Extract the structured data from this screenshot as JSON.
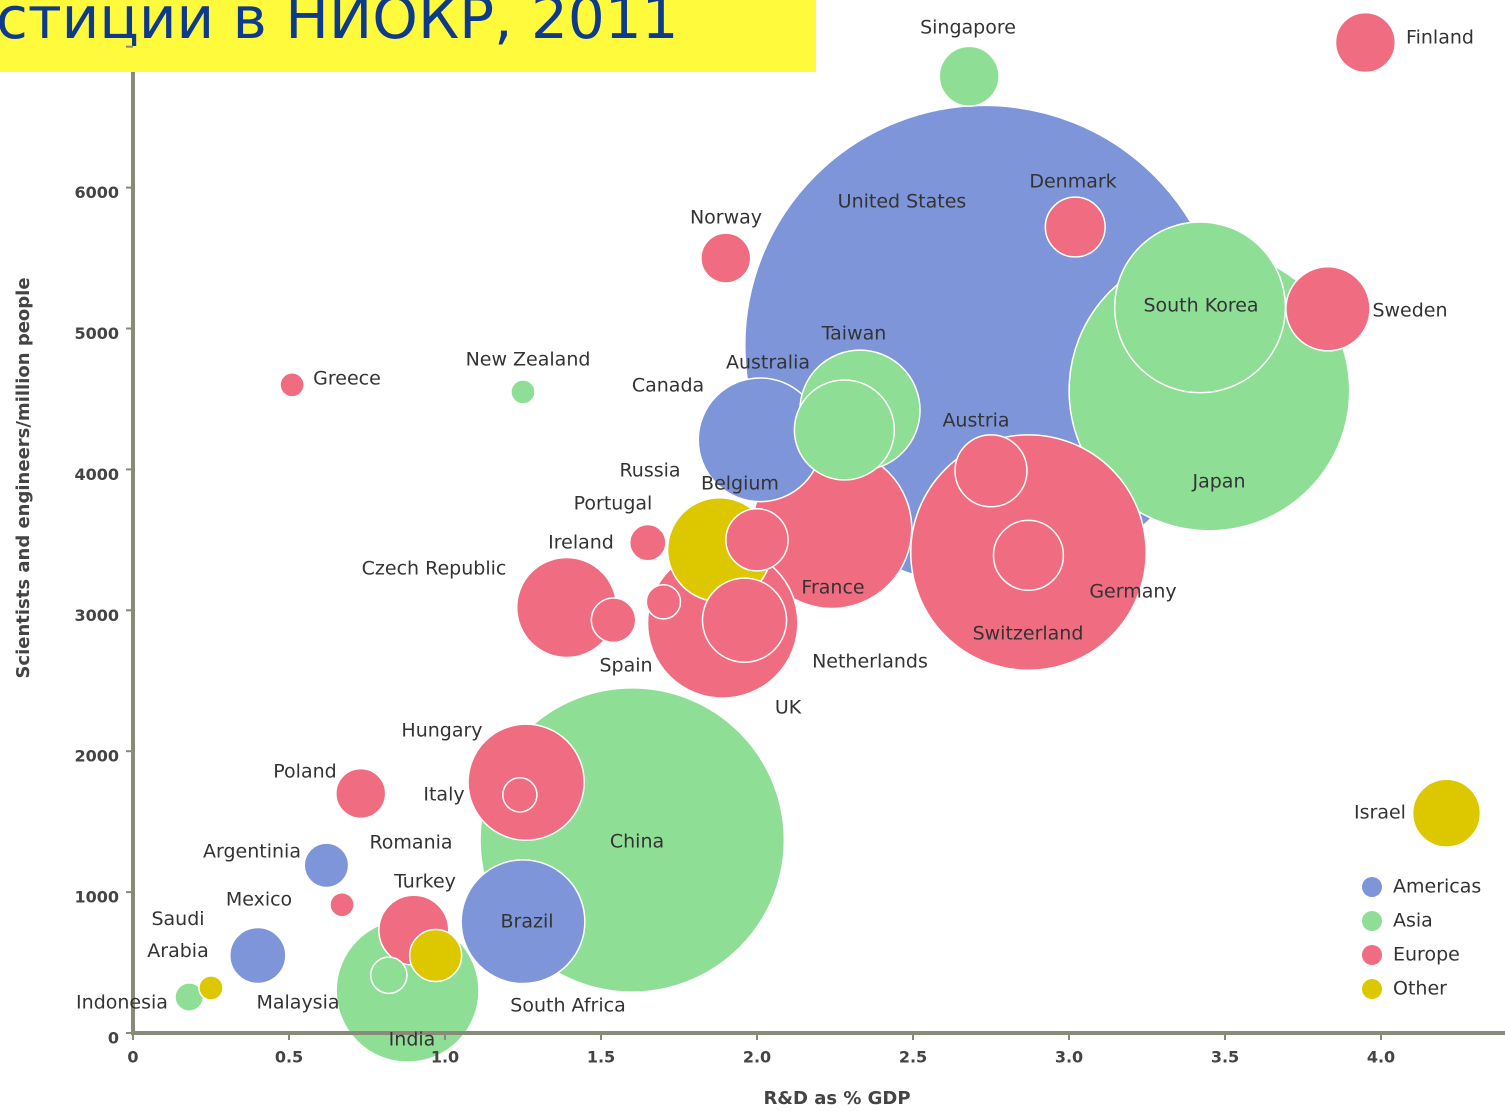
{
  "chart_data": {
    "type": "bubble",
    "title": "стиции в НИОКР, 2011",
    "x_label": "R&D as % GDP",
    "y_label": "Scientists and engineers/million people",
    "xlim": [
      0,
      4.6
    ],
    "ylim": [
      0,
      7400
    ],
    "xticks": [
      0,
      0.5,
      {
        "value": 1,
        "label": "1.0"
      },
      1.5,
      {
        "value": 2,
        "label": "2.0"
      },
      2.5,
      {
        "value": 3,
        "label": "3.0"
      },
      3.5,
      {
        "value": 4,
        "label": "4.0"
      }
    ],
    "yticks": [
      0,
      1000,
      2000,
      3000,
      4000,
      5000,
      6000,
      7000
    ],
    "series": [
      {
        "name": "Americas",
        "color": "#7f95d9",
        "names": [
          "United States",
          "Canada",
          "Argentinia",
          "Mexico",
          "Brazil"
        ],
        "x": [
          2.73,
          2.01,
          0.62,
          0.4,
          1.25
        ],
        "values": [
          4880,
          4210,
          1190,
          550,
          790
        ],
        "sizes": [
          316,
          21,
          2.7,
          4.3,
          21
        ]
      },
      {
        "name": "Asia",
        "color": "#8ede96",
        "names": [
          "Singapore",
          "South Korea",
          "Japan",
          "Taiwan",
          "Australia",
          "New Zealand",
          "China",
          "Indonesia",
          "Malaysia",
          "India"
        ],
        "x": [
          2.68,
          3.42,
          3.45,
          2.33,
          2.28,
          1.25,
          1.6,
          0.18,
          0.82,
          0.88
        ],
        "values": [
          6790,
          5150,
          4560,
          4420,
          4280,
          4550,
          1370,
          255,
          410,
          300
        ],
        "sizes": [
          4.9,
          40,
          108,
          19.8,
          13.7,
          0.8,
          127,
          1.1,
          1.8,
          28
        ]
      },
      {
        "name": "Europe",
        "color": "#f06c80",
        "names": [
          "Finland",
          "Denmark",
          "Norway",
          "Sweden",
          "Greece",
          "Austria",
          "Belgium",
          "Portugal",
          "France",
          "Germany",
          "Switzerland",
          "Ireland",
          "Czech Republic",
          "Spain",
          "UK",
          "Netherlands",
          "Hungary",
          "Italy",
          "Poland",
          "Romania",
          "Turkey"
        ],
        "x": [
          3.95,
          3.02,
          1.9,
          3.83,
          0.51,
          2.75,
          2.0,
          1.65,
          2.24,
          2.87,
          2.87,
          1.7,
          1.39,
          1.54,
          1.89,
          1.96,
          1.26,
          1.24,
          0.73,
          0.67,
          0.9
        ],
        "values": [
          7030,
          5720,
          5500,
          5140,
          4600,
          3990,
          3500,
          3480,
          3580,
          3410,
          3390,
          3060,
          3020,
          2930,
          2910,
          2930,
          1780,
          1690,
          1700,
          910,
          730
        ],
        "sizes": [
          4.9,
          4.9,
          3.4,
          9.7,
          0.8,
          7.1,
          5.3,
          1.8,
          35,
          76,
          6.7,
          1.6,
          13.7,
          2.7,
          31,
          9.7,
          18.5,
          1.6,
          3.4,
          0.8,
          6.7
        ]
      },
      {
        "name": "Other",
        "color": "#ddc800",
        "names": [
          "Russia",
          "Saudi Arabia",
          "South Africa",
          "Israel"
        ],
        "x": [
          1.88,
          0.25,
          0.97,
          4.21
        ],
        "values": [
          3430,
          320,
          550,
          1560
        ],
        "sizes": [
          14.8,
          0.8,
          3.7,
          6.3
        ]
      }
    ]
  }
}
